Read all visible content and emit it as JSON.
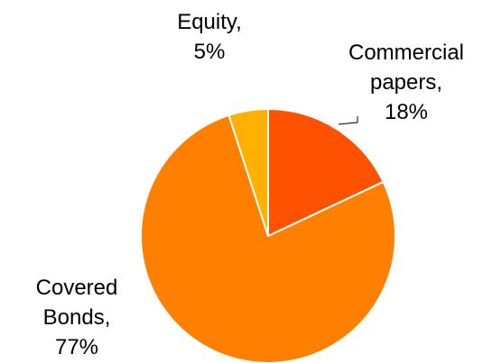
{
  "chart_data": {
    "type": "pie",
    "slices": [
      {
        "label_lines": [
          "Commercial",
          "papers,",
          "18%"
        ],
        "category": "Commercial papers",
        "value": 18,
        "color": "#ff5200"
      },
      {
        "label_lines": [
          "Covered",
          "Bonds,",
          "77%"
        ],
        "category": "Covered Bonds",
        "value": 77,
        "color": "#ff8000"
      },
      {
        "label_lines": [
          "Equity,",
          "5%"
        ],
        "category": "Equity",
        "value": 5,
        "color": "#ffb000"
      }
    ],
    "start": "12 o'clock",
    "direction": "clockwise",
    "legend": "none"
  }
}
